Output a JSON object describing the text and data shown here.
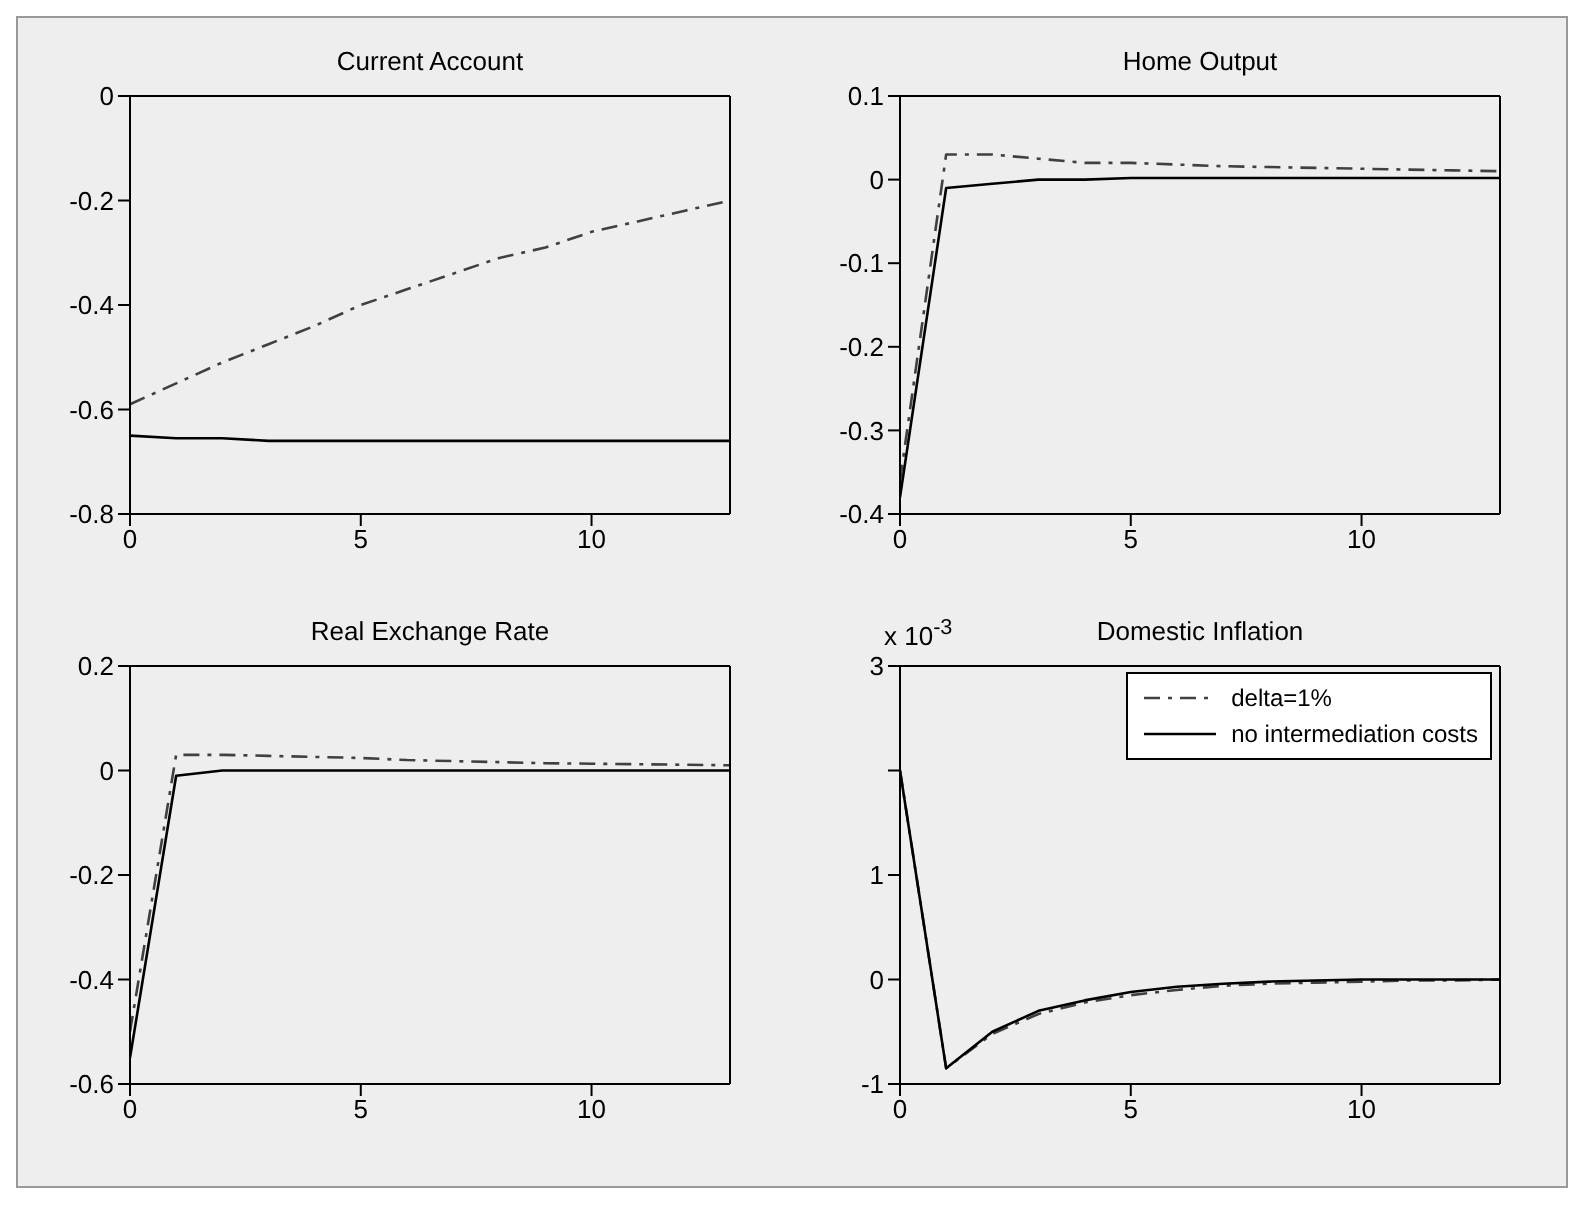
{
  "chart_data": [
    {
      "type": "line",
      "title": "Current Account",
      "x": [
        0,
        1,
        2,
        3,
        4,
        5,
        6,
        7,
        8,
        9,
        10,
        11,
        12,
        13
      ],
      "xlim": [
        0,
        13
      ],
      "xticks": [
        0,
        5,
        10
      ],
      "ylim": [
        -0.8,
        0
      ],
      "yticks": [
        -0.8,
        -0.6,
        -0.4,
        -0.2,
        0
      ],
      "grid": false,
      "legend": false,
      "series": [
        {
          "color": "#404040",
          "line_style": "dashed",
          "values": [
            -0.59,
            -0.55,
            -0.51,
            -0.475,
            -0.44,
            -0.4,
            -0.37,
            -0.34,
            -0.31,
            -0.29,
            -0.26,
            -0.24,
            -0.22,
            -0.2
          ]
        },
        {
          "color": "#000000",
          "line_style": "solid",
          "values": [
            -0.65,
            -0.655,
            -0.655,
            -0.66,
            -0.66,
            -0.66,
            -0.66,
            -0.66,
            -0.66,
            -0.66,
            -0.66,
            -0.66,
            -0.66,
            -0.66
          ]
        }
      ]
    },
    {
      "type": "line",
      "title": "Home Output",
      "x": [
        0,
        1,
        2,
        3,
        4,
        5,
        6,
        7,
        8,
        9,
        10,
        11,
        12,
        13
      ],
      "xlim": [
        0,
        13
      ],
      "xticks": [
        0,
        5,
        10
      ],
      "ylim": [
        -0.4,
        0.1
      ],
      "yticks": [
        -0.4,
        -0.3,
        -0.2,
        -0.1,
        0,
        0.1
      ],
      "grid": false,
      "legend": false,
      "series": [
        {
          "color": "#404040",
          "line_style": "dashed",
          "values": [
            -0.36,
            0.03,
            0.03,
            0.025,
            0.02,
            0.02,
            0.018,
            0.016,
            0.015,
            0.014,
            0.013,
            0.012,
            0.011,
            0.01
          ]
        },
        {
          "color": "#000000",
          "line_style": "solid",
          "values": [
            -0.38,
            -0.01,
            -0.005,
            0,
            0,
            0.002,
            0.002,
            0.002,
            0.002,
            0.002,
            0.002,
            0.002,
            0.002,
            0.002
          ]
        }
      ]
    },
    {
      "type": "line",
      "title": "Real Exchange Rate",
      "x": [
        0,
        1,
        2,
        3,
        4,
        5,
        6,
        7,
        8,
        9,
        10,
        11,
        12,
        13
      ],
      "xlim": [
        0,
        13
      ],
      "xticks": [
        0,
        5,
        10
      ],
      "ylim": [
        -0.6,
        0.2
      ],
      "yticks": [
        -0.6,
        -0.4,
        -0.2,
        0,
        0.2
      ],
      "grid": false,
      "legend": false,
      "series": [
        {
          "color": "#404040",
          "line_style": "dashed",
          "values": [
            -0.5,
            0.03,
            0.03,
            0.028,
            0.026,
            0.024,
            0.02,
            0.018,
            0.016,
            0.014,
            0.013,
            0.012,
            0.011,
            0.01
          ]
        },
        {
          "color": "#000000",
          "line_style": "solid",
          "values": [
            -0.55,
            -0.01,
            0,
            0,
            0,
            0,
            0,
            0,
            0,
            0,
            0,
            0,
            0,
            0
          ]
        }
      ]
    },
    {
      "type": "line",
      "title": "Domestic Inflation",
      "annotations": [
        "x 10$^{-3}$"
      ],
      "x": [
        0,
        1,
        2,
        3,
        4,
        5,
        6,
        7,
        8,
        9,
        10,
        11,
        12,
        13
      ],
      "xlim": [
        0,
        13
      ],
      "xticks": [
        0,
        5,
        10
      ],
      "ylim": [
        -1,
        3
      ],
      "yticks": [
        -1,
        0,
        1,
        {
          "value": 2,
          "label": null
        },
        3
      ],
      "grid": false,
      "legend": "top right",
      "series": [
        {
          "name": "delta=1%",
          "color": "#404040",
          "line_style": "dashed",
          "values": [
            2.0,
            -0.85,
            -0.52,
            -0.33,
            -0.22,
            -0.15,
            -0.1,
            -0.06,
            -0.04,
            -0.03,
            -0.02,
            -0.01,
            -0.01,
            0
          ]
        },
        {
          "name": "no intermediation costs",
          "color": "#000000",
          "line_style": "solid",
          "values": [
            2.0,
            -0.85,
            -0.5,
            -0.3,
            -0.2,
            -0.12,
            -0.07,
            -0.04,
            -0.02,
            -0.01,
            0,
            0,
            0,
            0
          ]
        }
      ]
    }
  ]
}
